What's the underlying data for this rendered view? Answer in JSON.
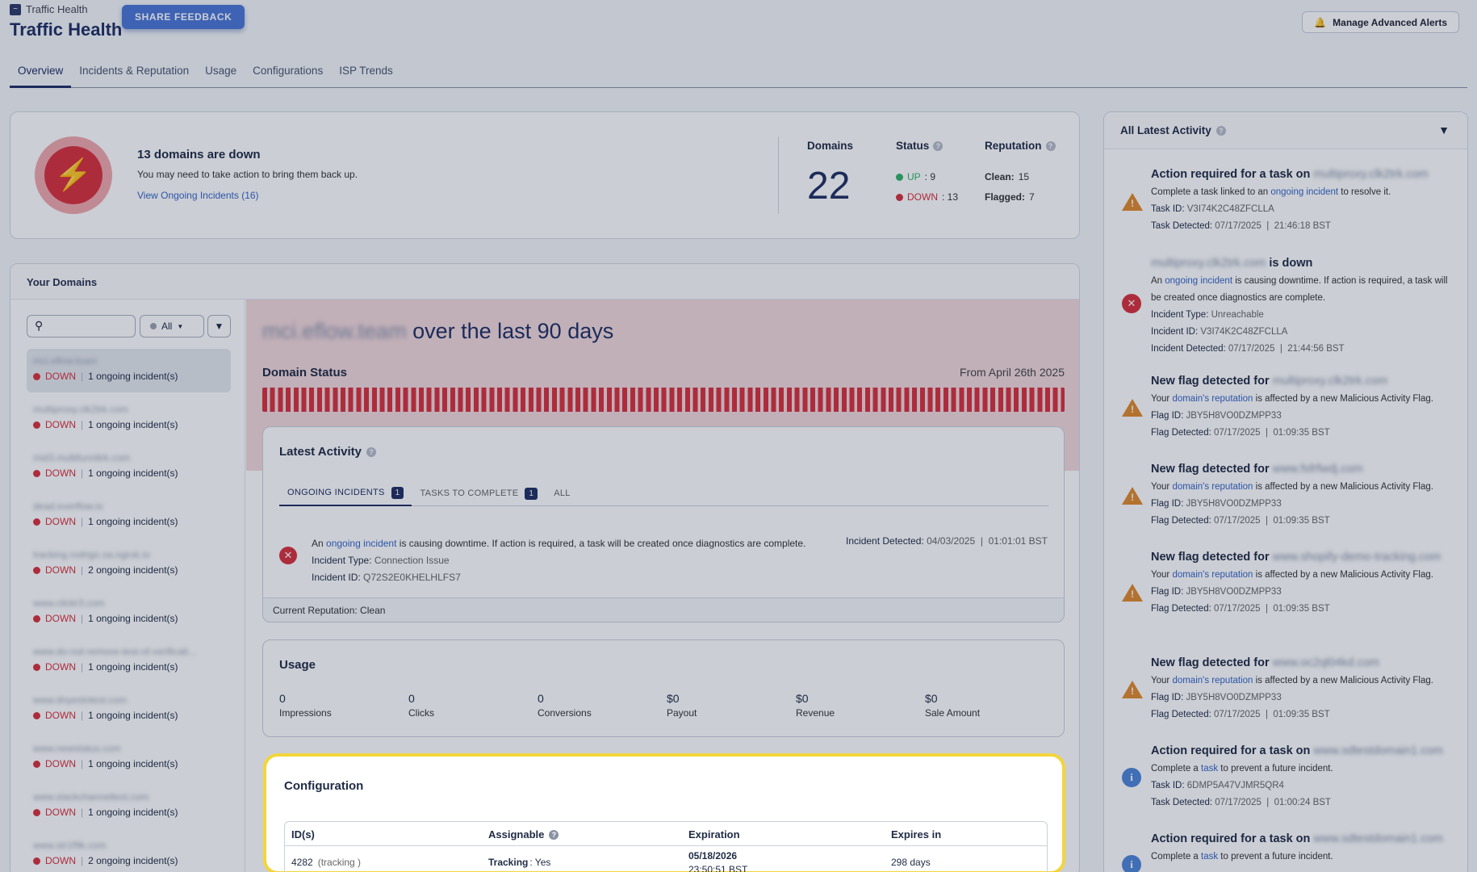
{
  "header": {
    "brand": "Traffic Health",
    "title": "Traffic Health",
    "share_feedback": "SHARE FEEDBACK",
    "manage_alerts": "Manage Advanced Alerts"
  },
  "tabs": [
    "Overview",
    "Incidents & Reputation",
    "Usage",
    "Configurations",
    "ISP Trends"
  ],
  "summary": {
    "title": "13 domains are down",
    "subtitle": "You may need to take action to bring them back up.",
    "link": "View Ongoing Incidents (16)",
    "domains_label": "Domains",
    "domains_count": "22",
    "status_label": "Status",
    "up_label": "UP",
    "up_count": ": 9",
    "down_label": "DOWN",
    "down_count": ": 13",
    "reputation_label": "Reputation",
    "clean_label": "Clean:",
    "clean_count": "15",
    "flagged_label": "Flagged:",
    "flagged_count": "7"
  },
  "your_domains": {
    "title": "Your Domains",
    "filter_value": "All",
    "items": [
      {
        "name": "mci.eflow.team",
        "status": "DOWN",
        "incidents": "1 ongoing incident(s)"
      },
      {
        "name": "multiproxy.clk2trk.com",
        "status": "DOWN",
        "incidents": "1 ongoing incident(s)"
      },
      {
        "name": "mid3.multifunnltrk.com",
        "status": "DOWN",
        "incidents": "1 ongoing incident(s)"
      },
      {
        "name": "dead.everflow.io",
        "status": "DOWN",
        "incidents": "1 ongoing incident(s)"
      },
      {
        "name": "tracking.rodrigo.sa.ngrok.io",
        "status": "DOWN",
        "incidents": "2 ongoing incident(s)"
      },
      {
        "name": "www.clickr3.com",
        "status": "DOWN",
        "incidents": "1 ongoing incident(s)"
      },
      {
        "name": "www.do-not-remove-test-of-verificati...",
        "status": "DOWN",
        "incidents": "1 ongoing incident(s)"
      },
      {
        "name": "www.dnyestotest.com",
        "status": "DOWN",
        "incidents": "1 ongoing incident(s)"
      },
      {
        "name": "www.newstatus.com",
        "status": "DOWN",
        "incidents": "1 ongoing incident(s)"
      },
      {
        "name": "www.slackchanneltest.com",
        "status": "DOWN",
        "incidents": "1 ongoing incident(s)"
      },
      {
        "name": "www.str1f9k.com",
        "status": "DOWN",
        "incidents": "2 ongoing incident(s)"
      }
    ]
  },
  "main": {
    "domain_blurred": "mci.eflow.team",
    "title_suffix": "over the last 90 days",
    "domain_status_label": "Domain Status",
    "from_label": "From April 26th 2025",
    "latest_activity": {
      "title": "Latest Activity",
      "tabs": [
        {
          "label": "ONGOING INCIDENTS",
          "badge": "1"
        },
        {
          "label": "TASKS TO COMPLETE",
          "badge": "1"
        },
        {
          "label": "ALL",
          "badge": ""
        }
      ],
      "incident_pre": "An",
      "incident_link": "ongoing incident",
      "incident_post": "is causing downtime. If action is required, a task will be created once diagnostics are complete.",
      "type_label": "Incident Type:",
      "type_value": "Connection Issue",
      "id_label": "Incident ID:",
      "id_value": "Q72S2E0KHELHLFS7",
      "detected_label": "Incident Detected:",
      "detected_value": "04/03/2025  |  01:01:01 BST",
      "reputation": "Current Reputation: Clean"
    },
    "usage": {
      "title": "Usage",
      "metrics": [
        {
          "value": "0",
          "label": "Impressions"
        },
        {
          "value": "0",
          "label": "Clicks"
        },
        {
          "value": "0",
          "label": "Conversions"
        },
        {
          "value": "$0",
          "label": "Payout"
        },
        {
          "value": "$0",
          "label": "Revenue"
        },
        {
          "value": "$0",
          "label": "Sale Amount"
        }
      ]
    },
    "configuration": {
      "title": "Configuration",
      "columns": [
        "ID(s)",
        "Assignable",
        "Expiration",
        "Expires in"
      ],
      "row": {
        "id": "4282",
        "id_type": "(tracking )",
        "assign_label": "Tracking",
        "assign_value": ": Yes",
        "expiration_date": "05/18/2026",
        "expiration_time": "23:50:51 BST",
        "expires_in": "298 days"
      }
    }
  },
  "activity": {
    "title": "All Latest Activity",
    "items": [
      {
        "type": "warn",
        "title": "Action required for a task on ",
        "title_blur": "multiproxy.clk2trk.com",
        "title_after": "",
        "l1_pre": "Complete a task linked to an ",
        "l1_link": "ongoing incident",
        "l1_post": " to resolve it.",
        "l2_label": "Task ID:",
        "l2_value": "V3I74K2C48ZFCLLA",
        "l3_label": "Task Detected:",
        "l3_value": "07/17/2025  |  21:46:18 BST",
        "l4_label": "",
        "l4_value": ""
      },
      {
        "type": "err",
        "title": "",
        "title_blur": "multiproxy.clk2trk.com",
        "title_after": " is down",
        "l1_pre": "An ",
        "l1_link": "ongoing incident",
        "l1_post": " is causing downtime. If action is required, a task will be created once diagnostics are complete.",
        "l2_label": "Incident Type:",
        "l2_value": "Unreachable",
        "l3_label": "Incident ID:",
        "l3_value": "V3I74K2C48ZFCLLA",
        "l4_label": "Incident Detected:",
        "l4_value": "07/17/2025  |  21:44:56 BST"
      },
      {
        "type": "warn",
        "title": "New flag detected for ",
        "title_blur": "multiproxy.clk2trk.com",
        "title_after": "",
        "l1_pre": "Your ",
        "l1_link": "domain's reputation",
        "l1_post": " is affected by a new Malicious Activity Flag.",
        "l2_label": "Flag ID:",
        "l2_value": "JBY5H8VO0DZMPP33",
        "l3_label": "Flag Detected:",
        "l3_value": "07/17/2025  |  01:09:35 BST",
        "l4_label": "",
        "l4_value": ""
      },
      {
        "type": "warn",
        "title": "New flag detected for ",
        "title_blur": "www.fsfrfwdj.com",
        "title_after": "",
        "l1_pre": "Your ",
        "l1_link": "domain's reputation",
        "l1_post": " is affected by a new Malicious Activity Flag.",
        "l2_label": "Flag ID:",
        "l2_value": "JBY5H8VO0DZMPP33",
        "l3_label": "Flag Detected:",
        "l3_value": "07/17/2025  |  01:09:35 BST",
        "l4_label": "",
        "l4_value": ""
      },
      {
        "type": "warn",
        "title": "New flag detected for ",
        "title_blur": "www.shopify-demo-tracking.com",
        "title_after": "",
        "l1_pre": "Your ",
        "l1_link": "domain's reputation",
        "l1_post": " is affected by a new Malicious Activity Flag.",
        "l2_label": "Flag ID:",
        "l2_value": "JBY5H8VO0DZMPP33",
        "l3_label": "Flag Detected:",
        "l3_value": "07/17/2025  |  01:09:35 BST",
        "l4_label": "",
        "l4_value": ""
      },
      {
        "type": "warn",
        "title": "New flag detected for ",
        "title_blur": "www.oc2ql04kd.com",
        "title_after": "",
        "l1_pre": "Your ",
        "l1_link": "domain's reputation",
        "l1_post": " is affected by a new Malicious Activity Flag.",
        "l2_label": "Flag ID:",
        "l2_value": "JBY5H8VO0DZMPP33",
        "l3_label": "Flag Detected:",
        "l3_value": "07/17/2025  |  01:09:35 BST",
        "l4_label": "",
        "l4_value": ""
      },
      {
        "type": "info",
        "title": "Action required for a task on ",
        "title_blur": "www.sdtestdomain1.com",
        "title_after": "",
        "l1_pre": "Complete a ",
        "l1_link": "task",
        "l1_post": " to prevent a future incident.",
        "l2_label": "Task ID:",
        "l2_value": "6DMP5A47VJMR5QR4",
        "l3_label": "Task Detected:",
        "l3_value": "07/17/2025  |  01:00:24 BST",
        "l4_label": "",
        "l4_value": ""
      },
      {
        "type": "info",
        "title": "Action required for a task on ",
        "title_blur": "www.sdtestdomain1.com",
        "title_after": "",
        "l1_pre": "Complete a ",
        "l1_link": "task",
        "l1_post": " to prevent a future incident.",
        "l2_label": "",
        "l2_value": "",
        "l3_label": "",
        "l3_value": "",
        "l4_label": "",
        "l4_value": ""
      }
    ]
  },
  "colors": {
    "accent": "#1f2f63",
    "down": "#d9303d",
    "up": "#2fb36b",
    "warning": "#e08a2c",
    "info": "#4f86d9",
    "highlight": "#f3d53b"
  }
}
